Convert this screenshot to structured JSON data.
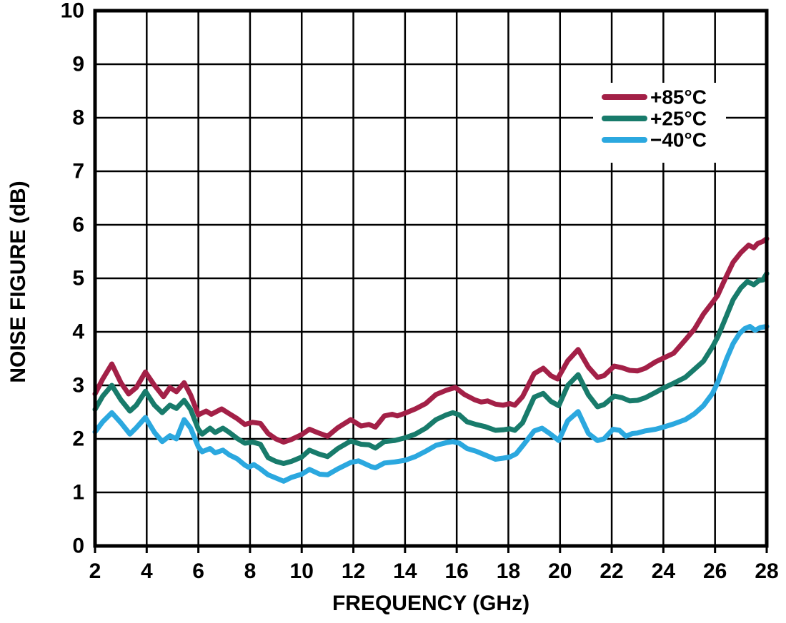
{
  "chart_data": {
    "type": "line",
    "title": "",
    "xlabel": "FREQUENCY (GHz)",
    "ylabel": "NOISE FIGURE (dB)",
    "xlim": [
      2,
      28
    ],
    "ylim": [
      0,
      10
    ],
    "x_ticks": [
      2,
      4,
      6,
      8,
      10,
      12,
      14,
      16,
      18,
      20,
      22,
      24,
      26,
      28
    ],
    "y_ticks": [
      0,
      1,
      2,
      3,
      4,
      5,
      6,
      7,
      8,
      9,
      10
    ],
    "grid": true,
    "legend_position": "top-right",
    "axis_color": "#000000",
    "series": [
      {
        "name": "+85°C",
        "color": "#A32047",
        "points": [
          [
            2.0,
            2.84
          ],
          [
            2.3,
            3.12
          ],
          [
            2.65,
            3.4
          ],
          [
            3.0,
            3.05
          ],
          [
            3.3,
            2.84
          ],
          [
            3.6,
            2.96
          ],
          [
            3.95,
            3.25
          ],
          [
            4.3,
            3.0
          ],
          [
            4.65,
            2.79
          ],
          [
            4.9,
            2.96
          ],
          [
            5.15,
            2.88
          ],
          [
            5.45,
            3.05
          ],
          [
            5.7,
            2.82
          ],
          [
            6.0,
            2.45
          ],
          [
            6.3,
            2.52
          ],
          [
            6.5,
            2.46
          ],
          [
            6.9,
            2.56
          ],
          [
            7.2,
            2.47
          ],
          [
            7.5,
            2.38
          ],
          [
            7.8,
            2.27
          ],
          [
            8.1,
            2.31
          ],
          [
            8.4,
            2.29
          ],
          [
            8.7,
            2.1
          ],
          [
            9.0,
            2.0
          ],
          [
            9.3,
            1.94
          ],
          [
            9.6,
            1.99
          ],
          [
            10.0,
            2.08
          ],
          [
            10.3,
            2.18
          ],
          [
            10.6,
            2.12
          ],
          [
            11.0,
            2.05
          ],
          [
            11.4,
            2.21
          ],
          [
            11.9,
            2.36
          ],
          [
            12.3,
            2.24
          ],
          [
            12.6,
            2.27
          ],
          [
            12.85,
            2.22
          ],
          [
            13.2,
            2.43
          ],
          [
            13.5,
            2.46
          ],
          [
            13.7,
            2.43
          ],
          [
            14.0,
            2.48
          ],
          [
            14.4,
            2.56
          ],
          [
            14.8,
            2.66
          ],
          [
            15.2,
            2.83
          ],
          [
            15.6,
            2.91
          ],
          [
            15.95,
            2.96
          ],
          [
            16.3,
            2.83
          ],
          [
            16.7,
            2.73
          ],
          [
            16.95,
            2.69
          ],
          [
            17.2,
            2.71
          ],
          [
            17.5,
            2.65
          ],
          [
            17.8,
            2.63
          ],
          [
            18.05,
            2.66
          ],
          [
            18.25,
            2.63
          ],
          [
            18.55,
            2.79
          ],
          [
            19.0,
            3.22
          ],
          [
            19.35,
            3.32
          ],
          [
            19.65,
            3.18
          ],
          [
            19.9,
            3.12
          ],
          [
            20.3,
            3.46
          ],
          [
            20.7,
            3.67
          ],
          [
            21.1,
            3.34
          ],
          [
            21.45,
            3.15
          ],
          [
            21.7,
            3.18
          ],
          [
            22.1,
            3.36
          ],
          [
            22.4,
            3.33
          ],
          [
            22.7,
            3.28
          ],
          [
            23.0,
            3.27
          ],
          [
            23.3,
            3.32
          ],
          [
            23.7,
            3.44
          ],
          [
            24.0,
            3.51
          ],
          [
            24.4,
            3.6
          ],
          [
            24.85,
            3.85
          ],
          [
            25.2,
            4.05
          ],
          [
            25.55,
            4.33
          ],
          [
            25.9,
            4.55
          ],
          [
            26.1,
            4.68
          ],
          [
            26.4,
            5.0
          ],
          [
            26.7,
            5.3
          ],
          [
            27.0,
            5.48
          ],
          [
            27.3,
            5.62
          ],
          [
            27.5,
            5.57
          ],
          [
            27.65,
            5.65
          ],
          [
            27.85,
            5.69
          ],
          [
            28.0,
            5.74
          ]
        ]
      },
      {
        "name": "+25°C",
        "color": "#187B6B",
        "points": [
          [
            2.0,
            2.55
          ],
          [
            2.3,
            2.8
          ],
          [
            2.65,
            3.0
          ],
          [
            3.0,
            2.73
          ],
          [
            3.35,
            2.52
          ],
          [
            3.6,
            2.63
          ],
          [
            3.95,
            2.89
          ],
          [
            4.3,
            2.63
          ],
          [
            4.6,
            2.49
          ],
          [
            4.9,
            2.63
          ],
          [
            5.15,
            2.57
          ],
          [
            5.45,
            2.72
          ],
          [
            5.7,
            2.55
          ],
          [
            6.0,
            2.18
          ],
          [
            6.15,
            2.09
          ],
          [
            6.45,
            2.2
          ],
          [
            6.65,
            2.12
          ],
          [
            6.95,
            2.2
          ],
          [
            7.2,
            2.12
          ],
          [
            7.5,
            2.01
          ],
          [
            7.8,
            1.92
          ],
          [
            8.1,
            1.94
          ],
          [
            8.4,
            1.9
          ],
          [
            8.7,
            1.65
          ],
          [
            9.0,
            1.58
          ],
          [
            9.3,
            1.54
          ],
          [
            9.6,
            1.58
          ],
          [
            10.0,
            1.66
          ],
          [
            10.3,
            1.79
          ],
          [
            10.65,
            1.72
          ],
          [
            11.0,
            1.67
          ],
          [
            11.4,
            1.82
          ],
          [
            11.9,
            1.96
          ],
          [
            12.3,
            1.9
          ],
          [
            12.6,
            1.89
          ],
          [
            12.85,
            1.83
          ],
          [
            13.2,
            1.95
          ],
          [
            13.6,
            1.97
          ],
          [
            14.0,
            2.02
          ],
          [
            14.4,
            2.09
          ],
          [
            14.8,
            2.2
          ],
          [
            15.2,
            2.36
          ],
          [
            15.6,
            2.45
          ],
          [
            15.85,
            2.49
          ],
          [
            16.1,
            2.45
          ],
          [
            16.4,
            2.32
          ],
          [
            16.75,
            2.27
          ],
          [
            17.1,
            2.23
          ],
          [
            17.5,
            2.16
          ],
          [
            17.8,
            2.17
          ],
          [
            18.05,
            2.19
          ],
          [
            18.25,
            2.16
          ],
          [
            18.55,
            2.3
          ],
          [
            19.0,
            2.78
          ],
          [
            19.35,
            2.85
          ],
          [
            19.65,
            2.7
          ],
          [
            19.95,
            2.62
          ],
          [
            20.3,
            3.0
          ],
          [
            20.7,
            3.2
          ],
          [
            21.1,
            2.82
          ],
          [
            21.45,
            2.6
          ],
          [
            21.7,
            2.64
          ],
          [
            22.1,
            2.8
          ],
          [
            22.4,
            2.77
          ],
          [
            22.7,
            2.71
          ],
          [
            23.0,
            2.72
          ],
          [
            23.3,
            2.77
          ],
          [
            23.7,
            2.87
          ],
          [
            24.0,
            2.95
          ],
          [
            24.4,
            3.04
          ],
          [
            24.85,
            3.15
          ],
          [
            25.2,
            3.3
          ],
          [
            25.55,
            3.45
          ],
          [
            25.9,
            3.72
          ],
          [
            26.1,
            3.9
          ],
          [
            26.4,
            4.25
          ],
          [
            26.7,
            4.6
          ],
          [
            27.0,
            4.82
          ],
          [
            27.25,
            4.94
          ],
          [
            27.5,
            4.88
          ],
          [
            27.7,
            4.96
          ],
          [
            27.85,
            4.97
          ],
          [
            28.0,
            5.09
          ]
        ]
      },
      {
        "name": "−40°C",
        "color": "#2BA8DF",
        "points": [
          [
            2.0,
            2.13
          ],
          [
            2.3,
            2.32
          ],
          [
            2.65,
            2.49
          ],
          [
            3.0,
            2.3
          ],
          [
            3.35,
            2.09
          ],
          [
            3.6,
            2.21
          ],
          [
            3.95,
            2.4
          ],
          [
            4.3,
            2.12
          ],
          [
            4.6,
            1.95
          ],
          [
            4.9,
            2.06
          ],
          [
            5.15,
            2.0
          ],
          [
            5.45,
            2.36
          ],
          [
            5.7,
            2.2
          ],
          [
            6.0,
            1.85
          ],
          [
            6.15,
            1.76
          ],
          [
            6.45,
            1.82
          ],
          [
            6.65,
            1.74
          ],
          [
            6.95,
            1.79
          ],
          [
            7.2,
            1.7
          ],
          [
            7.5,
            1.63
          ],
          [
            7.8,
            1.51
          ],
          [
            7.95,
            1.47
          ],
          [
            8.15,
            1.52
          ],
          [
            8.4,
            1.44
          ],
          [
            8.7,
            1.33
          ],
          [
            9.0,
            1.27
          ],
          [
            9.3,
            1.21
          ],
          [
            9.6,
            1.28
          ],
          [
            10.0,
            1.34
          ],
          [
            10.3,
            1.43
          ],
          [
            10.7,
            1.34
          ],
          [
            11.0,
            1.33
          ],
          [
            11.4,
            1.44
          ],
          [
            11.9,
            1.56
          ],
          [
            12.2,
            1.59
          ],
          [
            12.7,
            1.48
          ],
          [
            12.85,
            1.46
          ],
          [
            13.2,
            1.55
          ],
          [
            13.6,
            1.57
          ],
          [
            14.0,
            1.6
          ],
          [
            14.4,
            1.67
          ],
          [
            14.8,
            1.77
          ],
          [
            15.2,
            1.88
          ],
          [
            15.6,
            1.93
          ],
          [
            15.85,
            1.95
          ],
          [
            16.1,
            1.92
          ],
          [
            16.4,
            1.82
          ],
          [
            16.75,
            1.77
          ],
          [
            17.1,
            1.7
          ],
          [
            17.5,
            1.62
          ],
          [
            17.8,
            1.64
          ],
          [
            18.05,
            1.66
          ],
          [
            18.3,
            1.72
          ],
          [
            18.6,
            1.9
          ],
          [
            19.0,
            2.15
          ],
          [
            19.3,
            2.2
          ],
          [
            19.6,
            2.1
          ],
          [
            19.95,
            1.97
          ],
          [
            20.3,
            2.34
          ],
          [
            20.7,
            2.51
          ],
          [
            21.1,
            2.1
          ],
          [
            21.45,
            1.97
          ],
          [
            21.7,
            2.0
          ],
          [
            22.05,
            2.18
          ],
          [
            22.3,
            2.16
          ],
          [
            22.55,
            2.05
          ],
          [
            22.8,
            2.1
          ],
          [
            23.0,
            2.11
          ],
          [
            23.3,
            2.15
          ],
          [
            23.7,
            2.18
          ],
          [
            24.0,
            2.22
          ],
          [
            24.4,
            2.28
          ],
          [
            24.85,
            2.36
          ],
          [
            25.2,
            2.47
          ],
          [
            25.55,
            2.62
          ],
          [
            25.9,
            2.85
          ],
          [
            26.1,
            3.05
          ],
          [
            26.45,
            3.5
          ],
          [
            26.7,
            3.78
          ],
          [
            26.95,
            3.97
          ],
          [
            27.15,
            4.06
          ],
          [
            27.35,
            4.1
          ],
          [
            27.55,
            4.03
          ],
          [
            27.75,
            4.08
          ],
          [
            28.0,
            4.1
          ]
        ]
      }
    ]
  }
}
